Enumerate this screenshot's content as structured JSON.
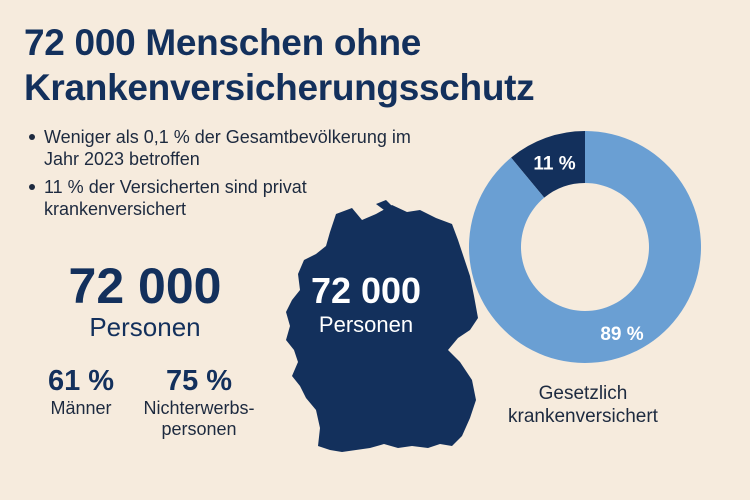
{
  "headline": {
    "line1": "72 000 Menschen ohne",
    "line2": "Krankenversicherungsschutz"
  },
  "bullets": [
    {
      "text": "Weniger als 0,1 % der Gesamtbevölkerung im Jahr 2023 betroffen"
    },
    {
      "text": "11 % der Versicherten sind privat krankenversichert"
    }
  ],
  "summary": {
    "number": "72 000",
    "unit": "Personen",
    "men_pct": "61 %",
    "men_label": "Männer",
    "nonworking_pct": "75 %",
    "nonworking_label_1": "Nichterwerbs-",
    "nonworking_label_2": "personen"
  },
  "map": {
    "number": "72 000",
    "unit": "Personen"
  },
  "colors": {
    "navy": "#13305c",
    "light_blue": "#6a9fd3",
    "background": "#f6ebdd"
  },
  "chart_data": {
    "type": "pie",
    "variant": "donut",
    "title": "",
    "categories": [
      "privat krankenversichert",
      "Gesetzlich krankenversichert"
    ],
    "values": [
      11,
      89
    ],
    "labels": [
      "11 %",
      "89 %"
    ],
    "caption_line1": "Gesetzlich",
    "caption_line2": "krankenversichert"
  }
}
